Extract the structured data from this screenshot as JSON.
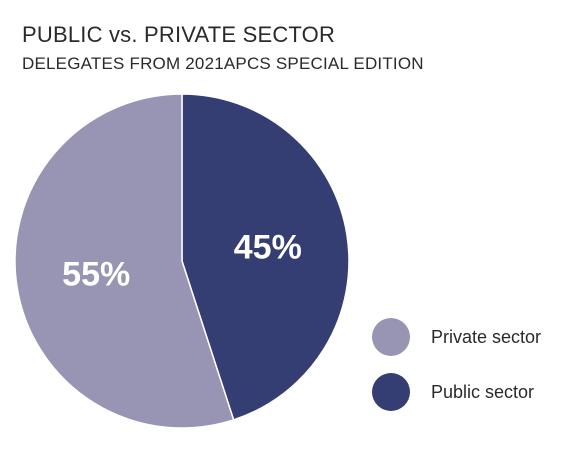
{
  "chart_data": {
    "type": "pie",
    "title": "PUBLIC vs. PRIVATE SECTOR",
    "subtitle": "DELEGATES FROM 2021APCS SPECIAL EDITION",
    "slices": [
      {
        "label": "Public sector",
        "value": 45,
        "display": "45%",
        "color": "#353e73"
      },
      {
        "label": "Private sector",
        "value": 55,
        "display": "55%",
        "color": "#9794b4"
      }
    ],
    "legend": {
      "position": "bottom-right",
      "items": [
        {
          "label": "Private sector",
          "color": "#9794b4"
        },
        {
          "label": "Public sector",
          "color": "#353e73"
        }
      ]
    }
  }
}
